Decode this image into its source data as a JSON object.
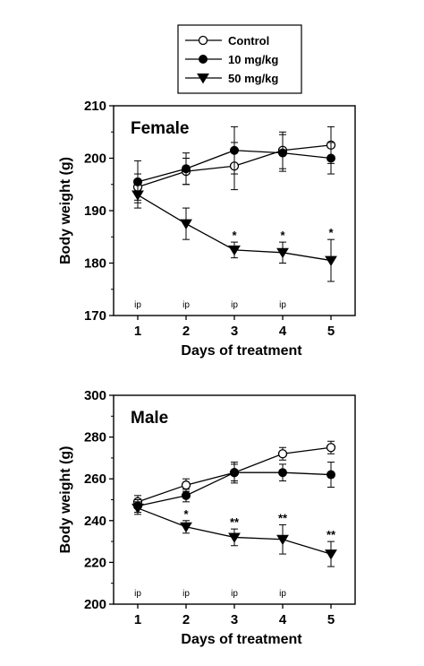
{
  "legend": {
    "entries": [
      {
        "label": "Control",
        "marker": "open-circle"
      },
      {
        "label": "10 mg/kg",
        "marker": "filled-circle"
      },
      {
        "label": "50 mg/kg",
        "marker": "filled-triangle-down"
      }
    ]
  },
  "chart_data": [
    {
      "type": "line",
      "panel_label": "Female",
      "xlabel": "Days of treatment",
      "ylabel": "Body weight (g)",
      "x": [
        1,
        2,
        3,
        4,
        5
      ],
      "ylim": [
        170,
        210
      ],
      "yticks": [
        170,
        180,
        190,
        200,
        210
      ],
      "series": [
        {
          "name": "Control",
          "marker": "open-circle",
          "values": [
            194.5,
            197.5,
            198.5,
            201.5,
            202.5
          ],
          "errors": [
            2.5,
            2.5,
            4.5,
            3.5,
            3.5
          ]
        },
        {
          "name": "10 mg/kg",
          "marker": "filled-circle",
          "values": [
            195.5,
            198,
            201.5,
            201,
            200
          ],
          "errors": [
            4,
            3,
            4.5,
            3.5,
            3
          ]
        },
        {
          "name": "50 mg/kg",
          "marker": "filled-triangle-down",
          "values": [
            193,
            187.5,
            182.5,
            182,
            180.5
          ],
          "errors": [
            2.5,
            3,
            1.5,
            2,
            4
          ]
        }
      ],
      "significance": [
        {
          "x": 3,
          "label": "*"
        },
        {
          "x": 4,
          "label": "*"
        },
        {
          "x": 5,
          "label": "*"
        }
      ],
      "annotations": [
        {
          "x": 1,
          "label": "ip"
        },
        {
          "x": 2,
          "label": "ip"
        },
        {
          "x": 3,
          "label": "ip"
        },
        {
          "x": 4,
          "label": "ip"
        }
      ]
    },
    {
      "type": "line",
      "panel_label": "Male",
      "xlabel": "Days of treatment",
      "ylabel": "Body weight (g)",
      "x": [
        1,
        2,
        3,
        4,
        5
      ],
      "ylim": [
        200,
        300
      ],
      "yticks": [
        200,
        220,
        240,
        260,
        280,
        300
      ],
      "series": [
        {
          "name": "Control",
          "marker": "open-circle",
          "values": [
            249,
            257,
            263,
            272,
            275
          ],
          "errors": [
            3,
            3,
            4,
            3,
            3
          ]
        },
        {
          "name": "10 mg/kg",
          "marker": "filled-circle",
          "values": [
            247,
            252,
            263,
            263,
            262
          ],
          "errors": [
            3,
            3,
            5,
            4,
            6
          ]
        },
        {
          "name": "50 mg/kg",
          "marker": "filled-triangle-down",
          "values": [
            246,
            237,
            232,
            231,
            224
          ],
          "errors": [
            3,
            3,
            4,
            7,
            6
          ]
        }
      ],
      "significance": [
        {
          "x": 2,
          "label": "*"
        },
        {
          "x": 3,
          "label": "**"
        },
        {
          "x": 4,
          "label": "**"
        },
        {
          "x": 5,
          "label": "**"
        }
      ],
      "annotations": [
        {
          "x": 1,
          "label": "ip"
        },
        {
          "x": 2,
          "label": "ip"
        },
        {
          "x": 3,
          "label": "ip"
        },
        {
          "x": 4,
          "label": "ip"
        }
      ]
    }
  ]
}
